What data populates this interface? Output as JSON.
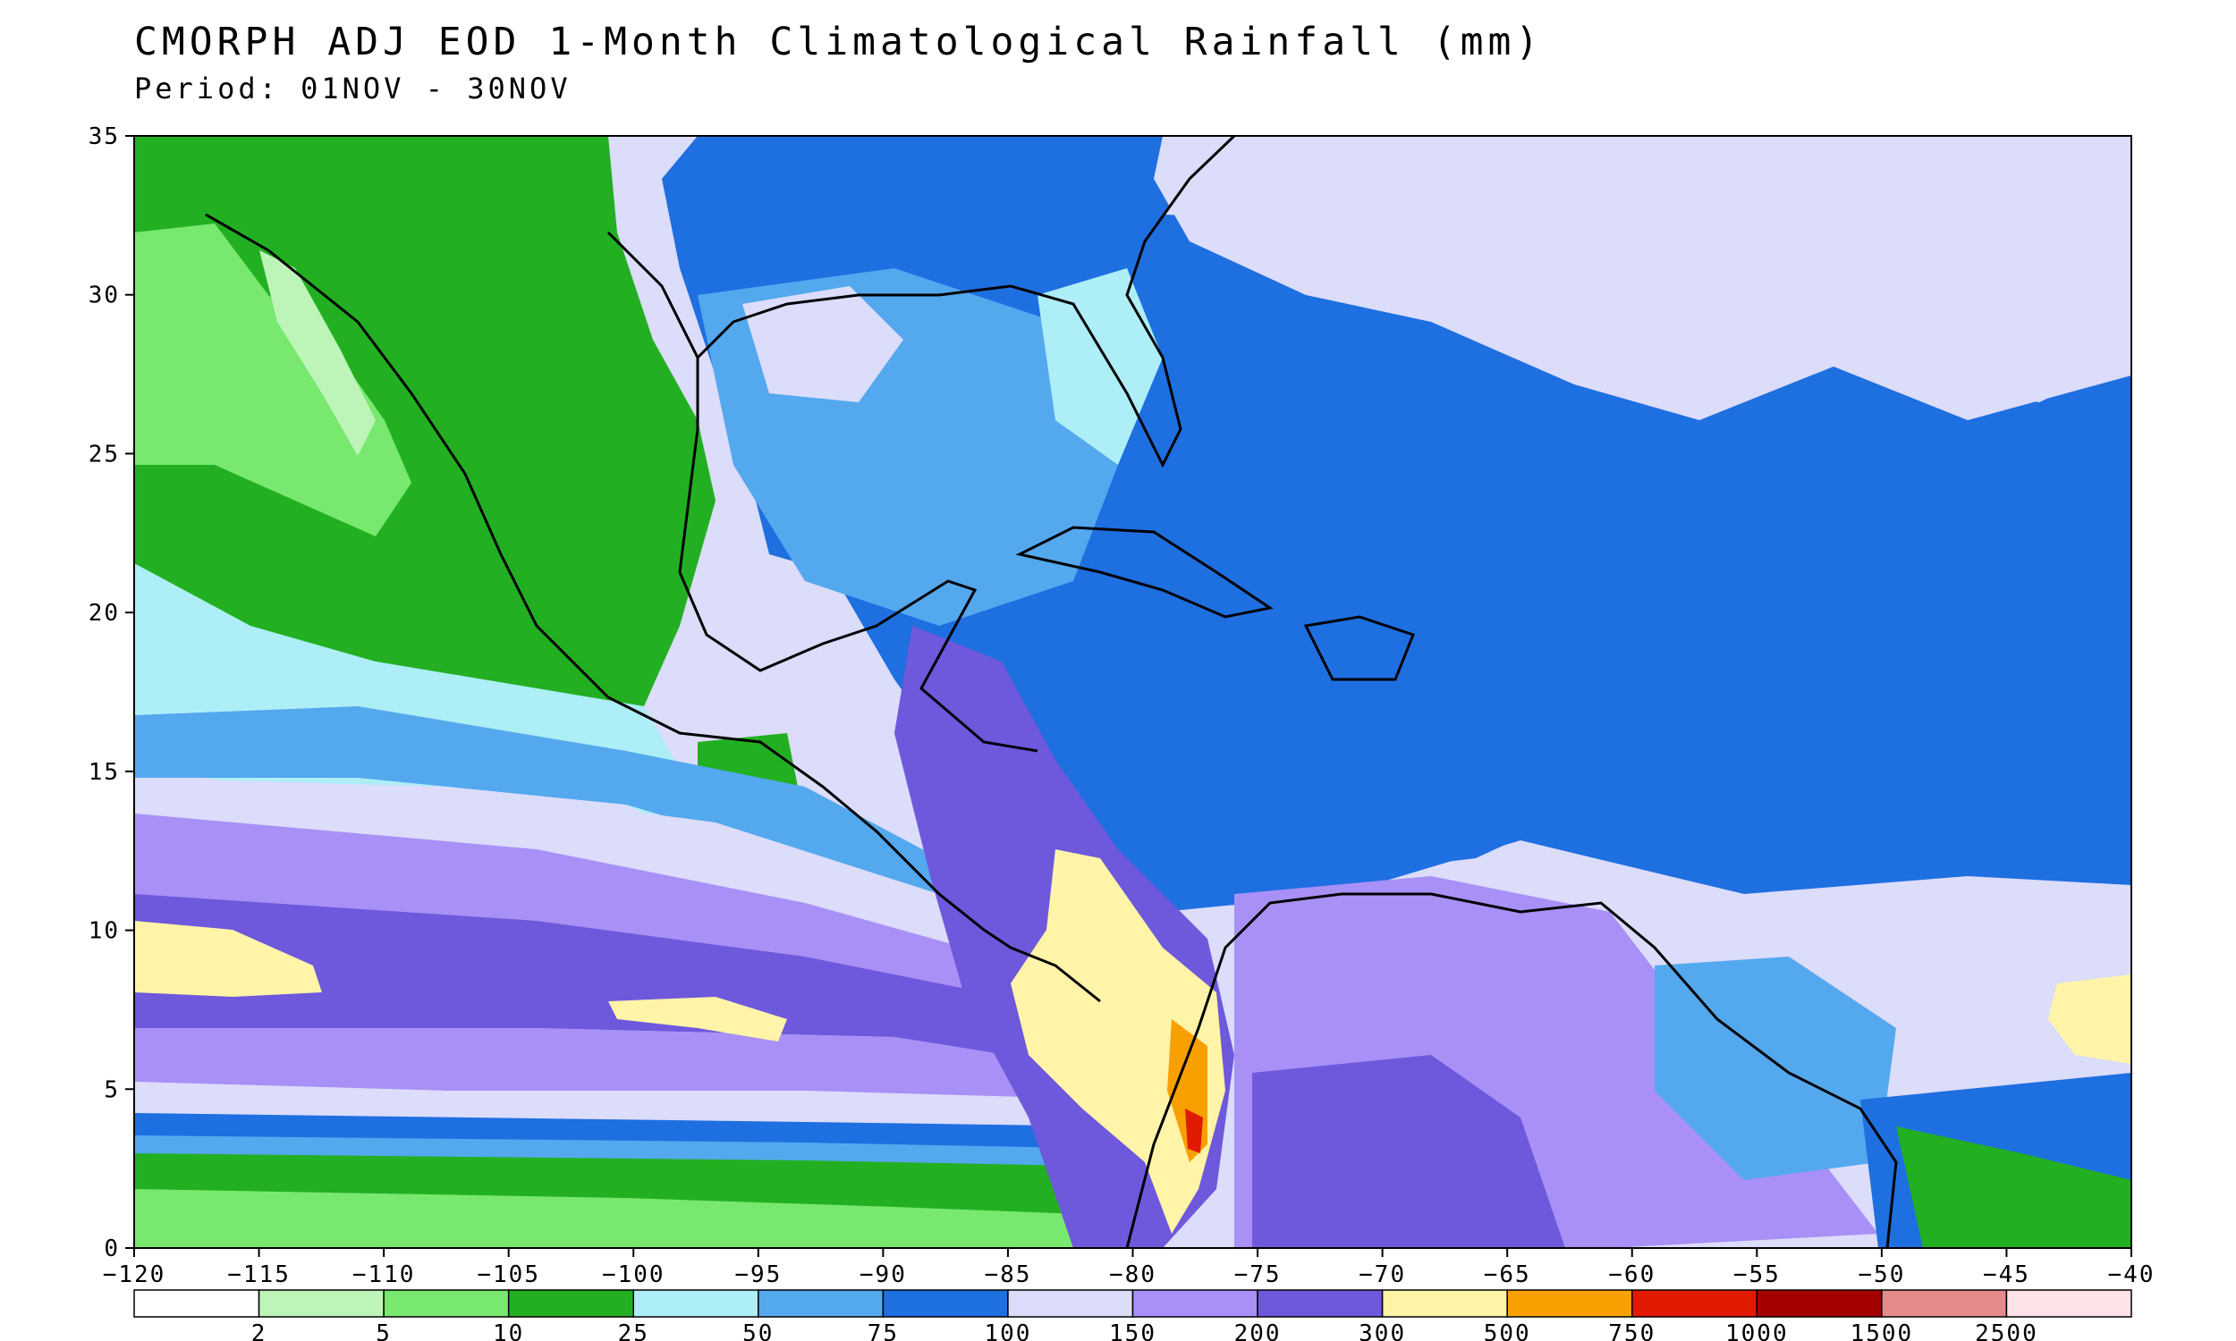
{
  "header": {
    "title": "CMORPH ADJ EOD 1-Month Climatological Rainfall (mm)",
    "period": "Period: 01NOV - 30NOV"
  },
  "map": {
    "lon_range": [
      -120,
      -40
    ],
    "lat_range": [
      0,
      35
    ],
    "lon_ticks": [
      "-120",
      "-115",
      "-110",
      "-105",
      "-100",
      "-95",
      "-90",
      "-85",
      "-80",
      "-75",
      "-70",
      "-65",
      "-60",
      "-55",
      "-50",
      "-45",
      "-40"
    ],
    "lat_ticks": [
      "0",
      "5",
      "10",
      "15",
      "20",
      "25",
      "30",
      "35"
    ]
  },
  "legend": {
    "thresholds": [
      "2",
      "5",
      "10",
      "25",
      "50",
      "75",
      "100",
      "150",
      "200",
      "300",
      "500",
      "750",
      "1000",
      "1500",
      "2500"
    ],
    "colors": [
      "#ffffff",
      "#bdf5b8",
      "#78e86e",
      "#22b022",
      "#aeeef6",
      "#54a8ee",
      "#1e6fe0",
      "#dcdcfb",
      "#a890f6",
      "#6e58dc",
      "#fff4a8",
      "#f8a000",
      "#e01a00",
      "#a40000",
      "#e48a8a",
      "#fde2e6"
    ]
  }
}
